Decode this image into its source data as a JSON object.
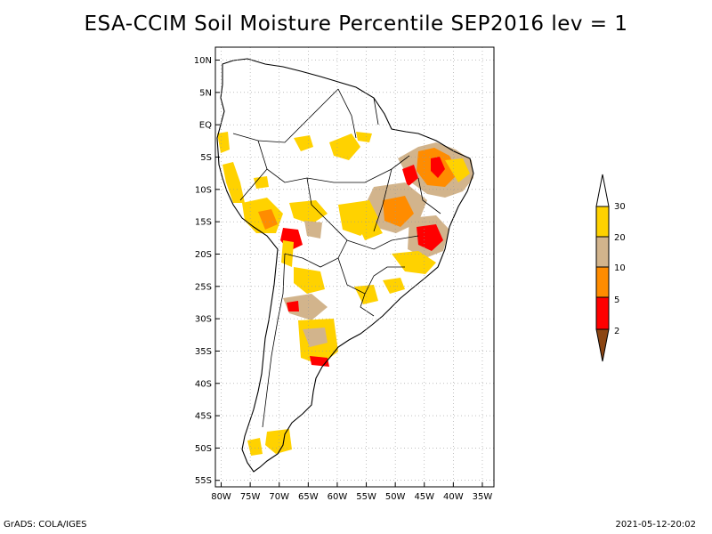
{
  "title": "ESA-CCIM Soil Moisture Percentile SEP2016 lev = 1",
  "footer": {
    "credit": "GrADS: COLA/IGES",
    "timestamp": "2021-05-12-20:02"
  },
  "axes": {
    "lat_ticks": [
      "10N",
      "5N",
      "EQ",
      "5S",
      "10S",
      "15S",
      "20S",
      "25S",
      "30S",
      "35S",
      "40S",
      "45S",
      "50S",
      "55S"
    ],
    "lon_ticks": [
      "80W",
      "75W",
      "70W",
      "65W",
      "60W",
      "55W",
      "50W",
      "45W",
      "40W",
      "35W"
    ],
    "lat_values": [
      10,
      5,
      0,
      -5,
      -10,
      -15,
      -20,
      -25,
      -30,
      -35,
      -40,
      -45,
      -50,
      -55
    ],
    "lon_values": [
      -80,
      -75,
      -70,
      -65,
      -60,
      -55,
      -50,
      -45,
      -40,
      -35
    ],
    "lon_range": [
      -81,
      -33
    ],
    "lat_range": [
      -56,
      12
    ],
    "grid": true
  },
  "legend": {
    "labels": [
      "30",
      "20",
      "10",
      "5",
      "2"
    ],
    "colors": {
      "above_30": "#ffffff",
      "20_30": "#ffd200",
      "10_20": "#d2b48c",
      "5_10": "#ff8c00",
      "2_5": "#ff0000",
      "below_2": "#8b4513"
    }
  },
  "colors": {
    "coast": "#000000",
    "grid": "#999999"
  }
}
